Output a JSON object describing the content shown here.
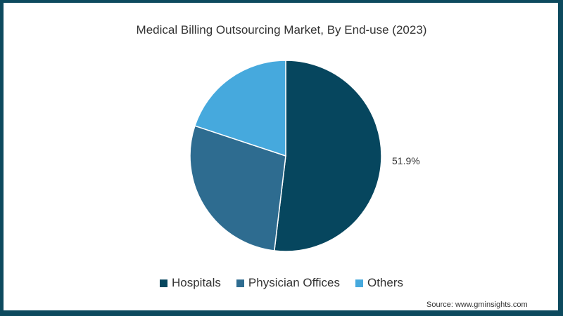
{
  "chart_data": {
    "type": "pie",
    "title": "Medical Billing Outsourcing Market, By End-use (2023)",
    "categories": [
      "Hospitals",
      "Physician Offices",
      "Others"
    ],
    "values": [
      51.9,
      28.2,
      19.9
    ],
    "colors": [
      "#06465e",
      "#2e6c90",
      "#46a9dd"
    ],
    "labels_shown": [
      "51.9%",
      "",
      ""
    ],
    "legend_position": "bottom",
    "source": "Source: www.gminsights.com"
  },
  "title": "Medical Billing Outsourcing Market, By End-use (2023)",
  "data_label": "51.9%",
  "legend": [
    {
      "label": "Hospitals",
      "color": "#06465e"
    },
    {
      "label": "Physician Offices",
      "color": "#2e6c90"
    },
    {
      "label": "Others",
      "color": "#46a9dd"
    }
  ],
  "source": "Source: www.gminsights.com"
}
